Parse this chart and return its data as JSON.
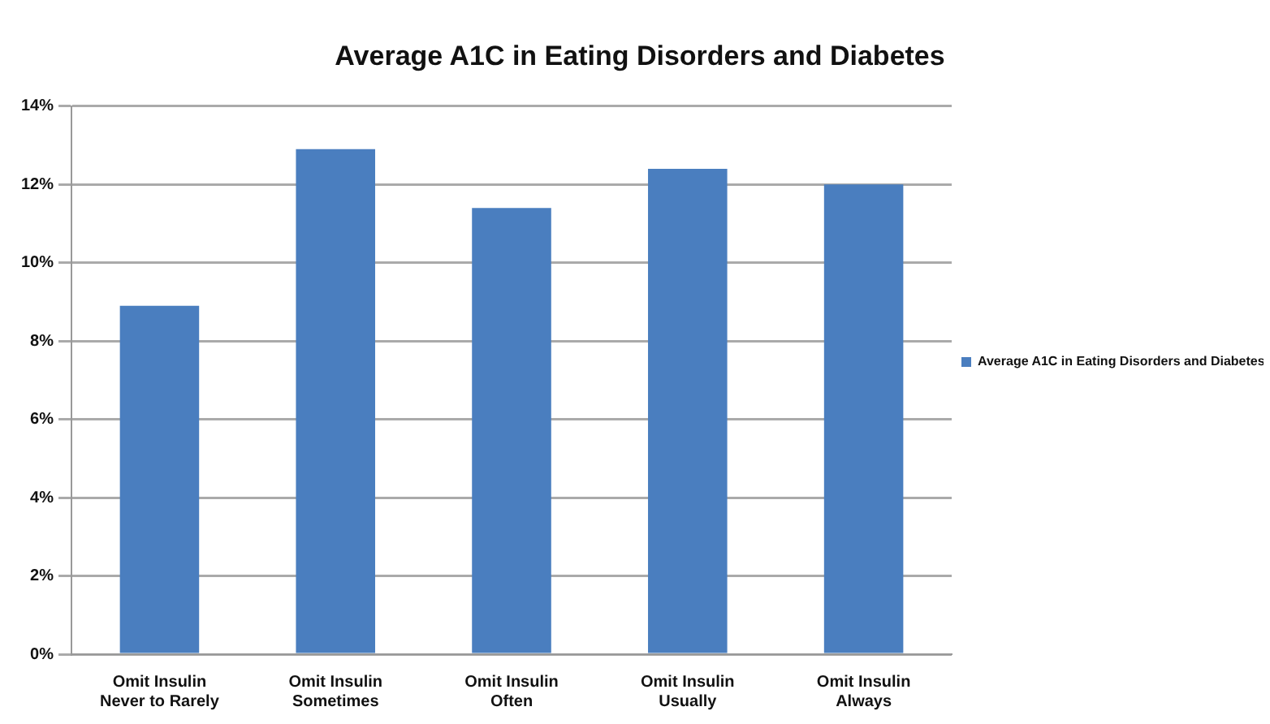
{
  "chart_data": {
    "type": "bar",
    "title": "Average A1C in Eating Disorders and Diabetes",
    "categories": [
      "Omit Insulin Never to Rarely",
      "Omit Insulin Sometimes",
      "Omit Insulin Often",
      "Omit Insulin Usually",
      "Omit Insulin Always"
    ],
    "series": [
      {
        "name": "Average A1C in Eating Disorders and Diabetes",
        "color": "#4a7ebf",
        "values": [
          8.9,
          12.9,
          11.4,
          12.4,
          12.0
        ]
      }
    ],
    "ylim": [
      0,
      14
    ],
    "yticks": [
      {
        "value": 0,
        "label": "0%"
      },
      {
        "value": 2,
        "label": "2%"
      },
      {
        "value": 4,
        "label": "4%"
      },
      {
        "value": 6,
        "label": "6%"
      },
      {
        "value": 8,
        "label": "8%"
      },
      {
        "value": 10,
        "label": "10%"
      },
      {
        "value": 12,
        "label": "12%"
      },
      {
        "value": 14,
        "label": "14%"
      }
    ],
    "grid": "y",
    "legend": "right"
  }
}
